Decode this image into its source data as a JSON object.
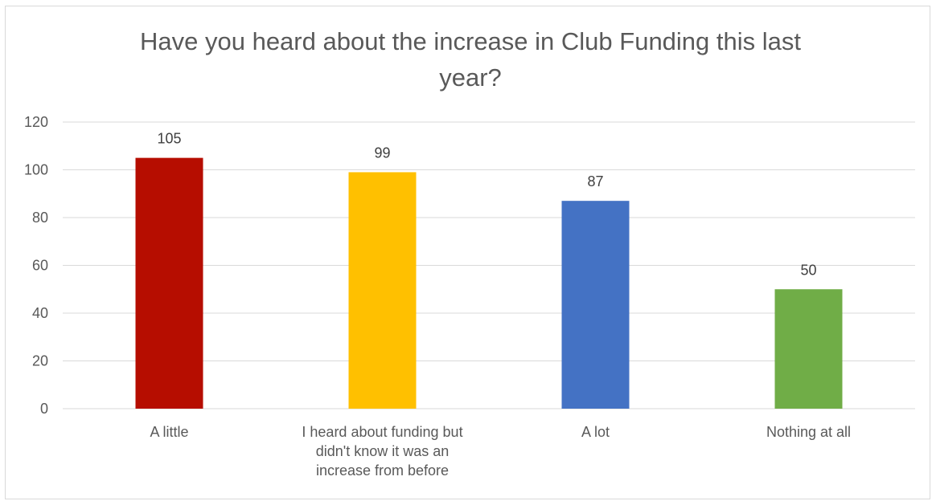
{
  "chart_data": {
    "type": "bar",
    "title_lines": [
      "Have you heard about the increase in Club Funding this last",
      "year?"
    ],
    "categories": [
      [
        "A little"
      ],
      [
        "I heard about funding but",
        "didn't know it was an",
        "increase from before"
      ],
      [
        "A lot"
      ],
      [
        "Nothing at all"
      ]
    ],
    "values": [
      105,
      99,
      87,
      50
    ],
    "colors": [
      "#b60d00",
      "#ffc000",
      "#4472c4",
      "#70ad47"
    ],
    "ylim": [
      0,
      120
    ],
    "yticks": [
      "0",
      "20",
      "40",
      "60",
      "80",
      "100",
      "120"
    ],
    "grid": true,
    "xlabel": "",
    "ylabel": ""
  }
}
